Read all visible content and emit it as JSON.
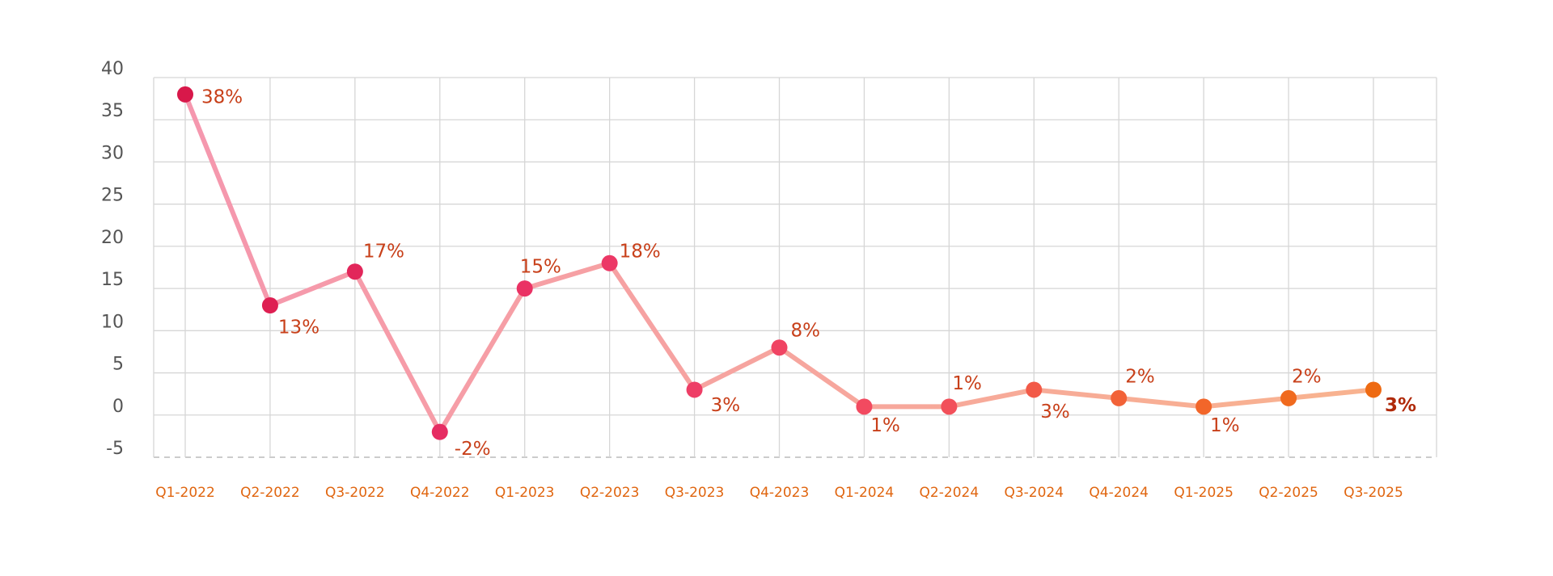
{
  "chart_data": {
    "type": "line",
    "categories": [
      "Q1-2022",
      "Q2-2022",
      "Q3-2022",
      "Q4-2022",
      "Q1-2023",
      "Q2-2023",
      "Q3-2023",
      "Q4-2023",
      "Q1-2024",
      "Q2-2024",
      "Q3-2024",
      "Q4-2024",
      "Q1-2025",
      "Q2-2025",
      "Q3-2025"
    ],
    "series": [
      {
        "values": [
          38,
          13,
          17,
          -2,
          15,
          18,
          3,
          8,
          1,
          1,
          3,
          2,
          1,
          2,
          3
        ],
        "value_labels": [
          "38%",
          "13%",
          "17%",
          "-2%",
          "15%",
          "18%",
          "3%",
          "8%",
          "1%",
          "1%",
          "3%",
          "2%",
          "1%",
          "2%",
          "3%"
        ],
        "line_colors": [
          "#f597ae",
          "#f8b38f"
        ],
        "point_colors": [
          "#d8184a",
          "#de1f52",
          "#e2265a",
          "#e62c62",
          "#ea3264",
          "#ec3866",
          "#ee3e66",
          "#f04463",
          "#f24a60",
          "#f2505a",
          "#f25a48",
          "#f26238",
          "#f2662a",
          "#f06a1e",
          "#ee6a12"
        ]
      }
    ],
    "ylim": [
      -5,
      40
    ],
    "yticks": [
      -5,
      0,
      5,
      10,
      15,
      20,
      25,
      30,
      35,
      40
    ],
    "grid": true
  }
}
